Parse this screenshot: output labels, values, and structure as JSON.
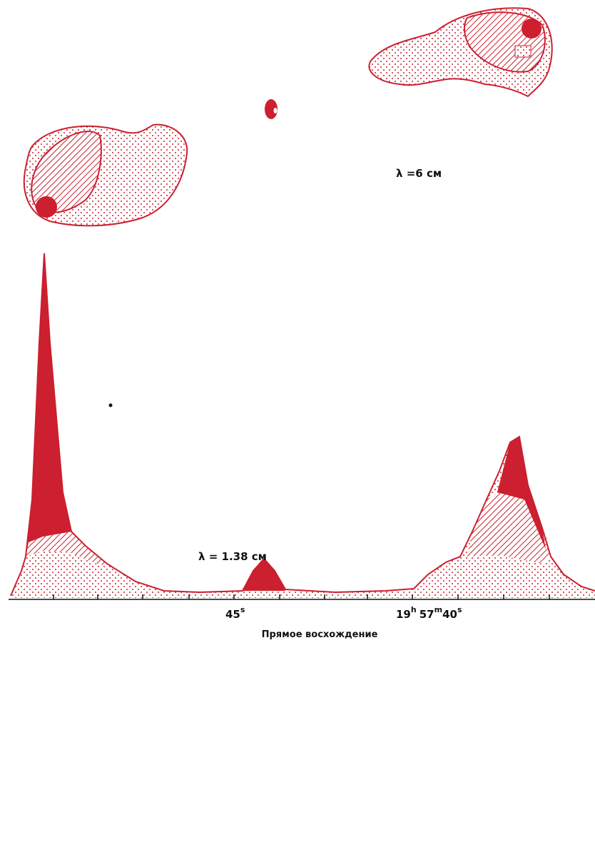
{
  "map_labels": [
    "λ =6 см",
    "λ = 1.38 см"
  ],
  "axis": {
    "title": "Прямое восхождение",
    "tick_labels": [
      [
        "45",
        "s"
      ],
      [
        "19",
        "h",
        "57",
        "m",
        "40",
        "s"
      ]
    ]
  }
}
